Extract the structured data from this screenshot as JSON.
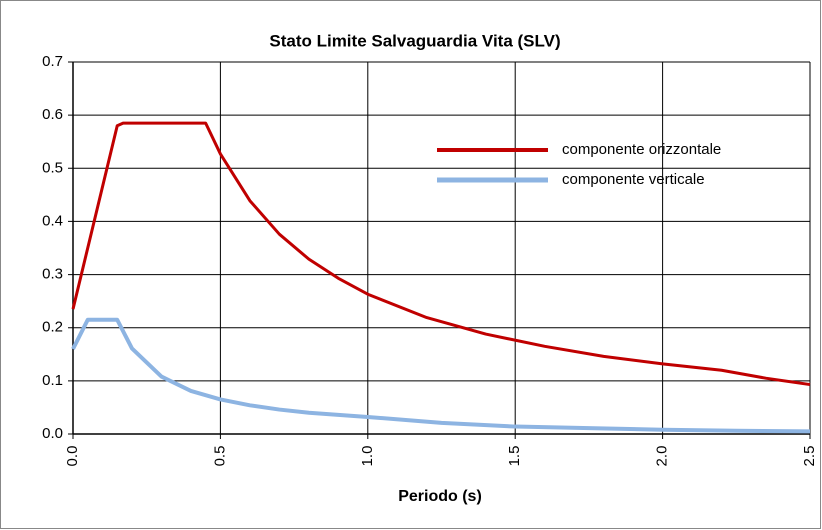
{
  "chart_data": {
    "type": "line",
    "title": "Stato Limite  Salvaguardia Vita (SLV)",
    "xlabel": "Periodo (s)",
    "xlim": [
      0,
      2.5
    ],
    "ylim": [
      0,
      0.7
    ],
    "xticks": [
      {
        "value": 0,
        "label": "0.0"
      },
      0.5,
      {
        "value": 1,
        "label": "1.0"
      },
      1.5,
      {
        "value": 2,
        "label": "2.0"
      },
      2.5
    ],
    "yticks": [
      {
        "value": 0,
        "label": "0.0"
      },
      0.1,
      0.2,
      0.3,
      0.4,
      0.5,
      0.6,
      0.7
    ],
    "grid": true,
    "legend": "upper right",
    "series": [
      {
        "name": "componente orizzontale",
        "color": "#c00000",
        "label_color": "#b5502a",
        "x": [
          0,
          0.15,
          0.17,
          0.45,
          0.5,
          0.6,
          0.7,
          0.8,
          0.9,
          1.0,
          1.2,
          1.4,
          1.6,
          1.8,
          2.0,
          2.2,
          2.35,
          2.5
        ],
        "values": [
          0.235,
          0.58,
          0.585,
          0.585,
          0.527,
          0.439,
          0.376,
          0.329,
          0.293,
          0.263,
          0.219,
          0.188,
          0.165,
          0.146,
          0.132,
          0.12,
          0.105,
          0.093
        ]
      },
      {
        "name": "componente verticale",
        "color": "#8db4e2",
        "label_color": "#1f1f8f",
        "x": [
          0,
          0.05,
          0.15,
          0.2,
          0.3,
          0.4,
          0.5,
          0.6,
          0.7,
          0.8,
          0.9,
          1.0,
          1.25,
          1.5,
          1.75,
          2.0,
          2.25,
          2.5
        ],
        "values": [
          0.16,
          0.215,
          0.215,
          0.161,
          0.108,
          0.081,
          0.065,
          0.054,
          0.046,
          0.04,
          0.036,
          0.032,
          0.021,
          0.014,
          0.011,
          0.008,
          0.006,
          0.005
        ]
      }
    ]
  }
}
